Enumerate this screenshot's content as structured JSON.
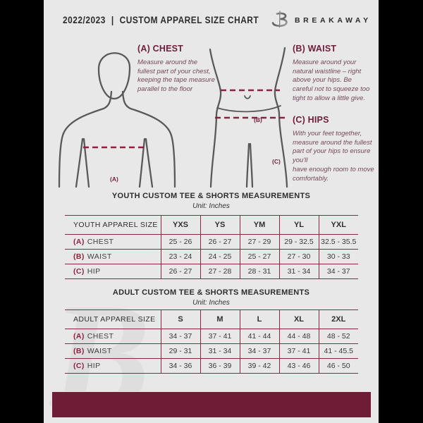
{
  "page": {
    "header": {
      "year": "2022/2023",
      "separator": "|",
      "title": "CUSTOM APPAREL SIZE CHART",
      "brand": "BREAKAWAY",
      "logo_icon": "breakaway-b-logo"
    },
    "diagram": {
      "chest_marker": "(A)",
      "waist_marker": "(B)",
      "hips_marker": "(C)",
      "watermark_letter": "B"
    },
    "instructions": [
      {
        "heading": "(A) CHEST",
        "body": "Measure around the fullest part of your chest, keeping the tape measure parallel to the floor"
      },
      {
        "heading": "(B) WAIST",
        "body": "Measure around your natural waistline – right above your hips. Be careful not to squeeze too tight to allow a little give."
      },
      {
        "heading": "(C) HIPS",
        "body": "With your feet together, measure around the fullest part of your hips to ensure you'll\nhave enough room to move comfortably."
      }
    ],
    "tables": [
      {
        "title": "YOUTH CUSTOM TEE & SHORTS MEASUREMENTS",
        "unit": "Unit: Inches",
        "header": [
          "YOUTH APPAREL SIZE",
          "YXS",
          "YS",
          "YM",
          "YL",
          "YXL"
        ],
        "rows": [
          {
            "marker": "(A)",
            "label": "CHEST",
            "values": [
              "25 - 26",
              "26 - 27",
              "27 - 29",
              "29 - 32.5",
              "32.5 - 35.5"
            ]
          },
          {
            "marker": "(B)",
            "label": "WAIST",
            "values": [
              "23 - 24",
              "24 - 25",
              "25 - 27",
              "27 - 30",
              "30 - 33"
            ]
          },
          {
            "marker": "(C)",
            "label": "HIP",
            "values": [
              "26 - 27",
              "27 - 28",
              "28 - 31",
              "31 - 34",
              "34 - 37"
            ]
          }
        ]
      },
      {
        "title": "ADULT CUSTOM TEE & SHORTS MEASUREMENTS",
        "unit": "Unit: Inches",
        "header": [
          "ADULT APPAREL SIZE",
          "S",
          "M",
          "L",
          "XL",
          "2XL"
        ],
        "rows": [
          {
            "marker": "(A)",
            "label": "CHEST",
            "values": [
              "34 - 37",
              "37 - 41",
              "41 - 44",
              "44 - 48",
              "48 - 52"
            ]
          },
          {
            "marker": "(B)",
            "label": "WAIST",
            "values": [
              "29 - 31",
              "31 - 34",
              "34 - 37",
              "37 - 41",
              "41 - 45.5"
            ]
          },
          {
            "marker": "(C)",
            "label": "HIP",
            "values": [
              "34 - 36",
              "36 - 39",
              "39 - 42",
              "43 - 46",
              "46 - 50"
            ]
          }
        ]
      }
    ],
    "colors": {
      "footer_maroon": "#6f1d36",
      "table_line": "#8c2642",
      "heading_maroon": "#6e1d3a",
      "body_outline_gray": "#58595b",
      "page_bg": "#e8e8e8"
    }
  }
}
